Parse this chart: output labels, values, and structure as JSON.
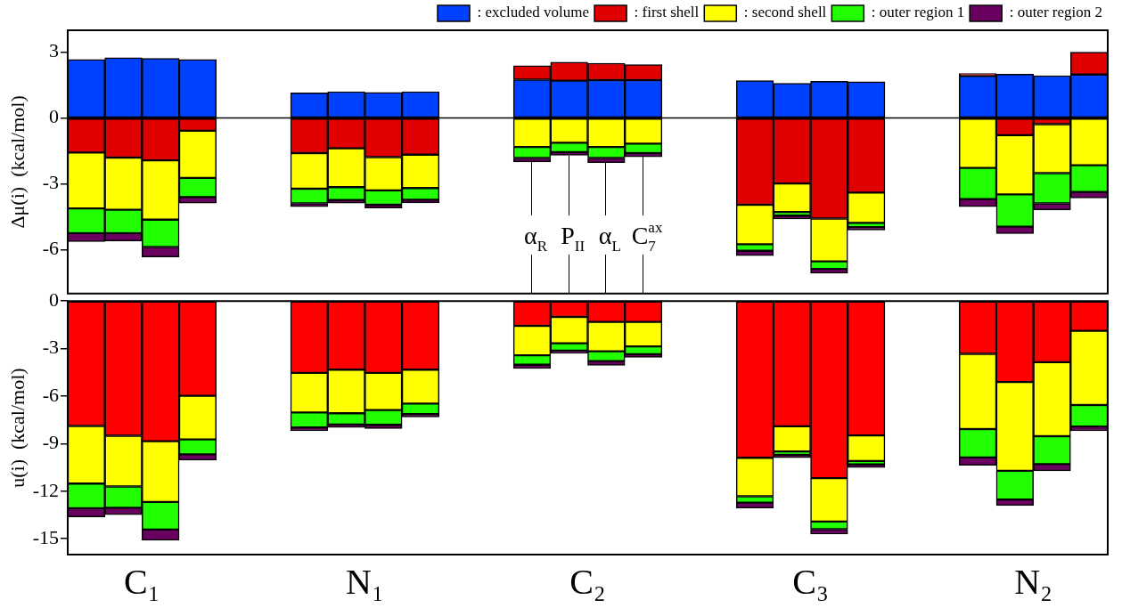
{
  "chart_data": [
    {
      "type": "bar",
      "stacked": true,
      "ylabel": "Δμ(i)  (kcal/mol)",
      "legend": "top right",
      "grid": false,
      "categories": [
        null,
        null,
        null,
        null,
        null,
        null,
        null,
        null,
        null,
        null,
        null,
        null,
        "α$_{R}$",
        "P$_{II}$",
        "α$_{L}$",
        "C$_{7}$$^{ax}$",
        null,
        null,
        null,
        null,
        null,
        null,
        null,
        null,
        null,
        null,
        null,
        null
      ],
      "ylim": [
        -8,
        4
      ],
      "yticks": [
        {
          "value": 3,
          "label": "3"
        },
        {
          "value": 0,
          "label": "0"
        },
        {
          "value": -3,
          "label": "-3"
        },
        {
          "value": -6,
          "label": "-6"
        }
      ],
      "ref_lines": [
        {
          "axis": "y",
          "value": 0
        }
      ],
      "series": [
        {
          "name": ": excluded volume",
          "color": "#0040ff",
          "values": [
            2.67,
            2.75,
            2.72,
            2.67,
            null,
            null,
            1.15,
            1.2,
            1.17,
            1.2,
            null,
            null,
            1.75,
            1.7,
            1.73,
            1.73,
            null,
            null,
            1.7,
            1.58,
            1.67,
            1.65,
            null,
            null,
            1.92,
            2.0,
            1.93,
            1.98
          ]
        },
        {
          "name": ": first shell",
          "color": "#e00000",
          "values": [
            -1.57,
            -1.8,
            -1.93,
            -0.58,
            null,
            null,
            -1.6,
            -1.38,
            -1.78,
            -1.67,
            null,
            null,
            0.63,
            0.85,
            0.77,
            0.7,
            null,
            null,
            -3.95,
            -2.98,
            -4.58,
            -3.4,
            null,
            null,
            0.11,
            -0.78,
            -0.28,
            1.02
          ]
        },
        {
          "name": ": second shell",
          "color": "#ffff00",
          "values": [
            -2.55,
            -2.38,
            -2.7,
            -2.15,
            null,
            null,
            -1.62,
            -1.77,
            -1.52,
            -1.52,
            null,
            null,
            -1.32,
            -1.13,
            -1.32,
            -1.17,
            null,
            null,
            -1.8,
            -1.3,
            -1.95,
            -1.38,
            null,
            null,
            -2.27,
            -2.7,
            -2.23,
            -2.15
          ]
        },
        {
          "name": ": outer region 1",
          "color": "#22ff00",
          "values": [
            -1.13,
            -1.07,
            -1.25,
            -0.87,
            null,
            null,
            -0.67,
            -0.58,
            -0.65,
            -0.53,
            null,
            null,
            -0.5,
            -0.42,
            -0.5,
            -0.43,
            null,
            null,
            -0.3,
            -0.17,
            -0.35,
            -0.19,
            null,
            null,
            -1.42,
            -1.47,
            -1.38,
            -1.22
          ]
        },
        {
          "name": ": outer region 2",
          "color": "#6a0060",
          "values": [
            -0.38,
            -0.35,
            -0.45,
            -0.28,
            null,
            null,
            -0.15,
            -0.15,
            -0.15,
            -0.15,
            null,
            null,
            -0.18,
            -0.15,
            -0.21,
            -0.17,
            null,
            null,
            -0.22,
            -0.15,
            -0.19,
            -0.13,
            null,
            null,
            -0.35,
            -0.32,
            -0.3,
            -0.27
          ]
        }
      ]
    },
    {
      "type": "bar",
      "stacked": true,
      "ylabel": "u(i)  (kcal/mol)",
      "grid": false,
      "categories": [
        null,
        "C₁",
        null,
        null,
        null,
        null,
        null,
        "N₁",
        null,
        null,
        null,
        null,
        null,
        "C₂",
        null,
        null,
        null,
        null,
        null,
        "C₃",
        null,
        null,
        null,
        null,
        null,
        "N₂",
        null,
        null
      ],
      "ylim": [
        -16,
        0
      ],
      "yticks": [
        {
          "value": 0,
          "label": "0"
        },
        {
          "value": -3,
          "label": "-3"
        },
        {
          "value": -6,
          "label": "-6"
        },
        {
          "value": -9,
          "label": "-9"
        },
        {
          "value": -12,
          "label": "-12"
        },
        {
          "value": -15,
          "label": "-15"
        }
      ],
      "series": [
        {
          "color": "#ff0000",
          "values": [
            -7.88,
            -8.5,
            -8.84,
            -5.98,
            null,
            null,
            -4.53,
            -4.33,
            -4.53,
            -4.33,
            null,
            null,
            -1.56,
            -1.0,
            -1.32,
            -1.32,
            null,
            null,
            -9.89,
            -7.9,
            -11.18,
            -8.48,
            null,
            null,
            -3.33,
            -5.11,
            -3.86,
            -1.88
          ]
        },
        {
          "color": "#ffff00",
          "values": [
            -3.64,
            -3.2,
            -3.84,
            -2.75,
            null,
            null,
            -2.5,
            -2.75,
            -2.35,
            -2.14,
            null,
            null,
            -1.86,
            -1.66,
            -1.85,
            -1.54,
            null,
            null,
            -2.43,
            -1.59,
            -2.73,
            -1.61,
            null,
            null,
            -4.75,
            -5.6,
            -4.67,
            -4.68
          ]
        },
        {
          "color": "#22ff00",
          "values": [
            -1.56,
            -1.34,
            -1.74,
            -0.94,
            null,
            null,
            -0.94,
            -0.71,
            -0.93,
            -0.67,
            null,
            null,
            -0.6,
            -0.47,
            -0.62,
            -0.49,
            null,
            null,
            -0.4,
            -0.22,
            -0.49,
            -0.22,
            null,
            null,
            -1.79,
            -1.81,
            -1.76,
            -1.36
          ]
        },
        {
          "color": "#6a0060",
          "values": [
            -0.54,
            -0.44,
            -0.67,
            -0.37,
            null,
            null,
            -0.22,
            -0.18,
            -0.23,
            -0.18,
            null,
            null,
            -0.24,
            -0.17,
            -0.27,
            -0.2,
            null,
            null,
            -0.34,
            -0.18,
            -0.31,
            -0.2,
            null,
            null,
            -0.49,
            -0.38,
            -0.42,
            -0.27
          ]
        }
      ]
    }
  ]
}
